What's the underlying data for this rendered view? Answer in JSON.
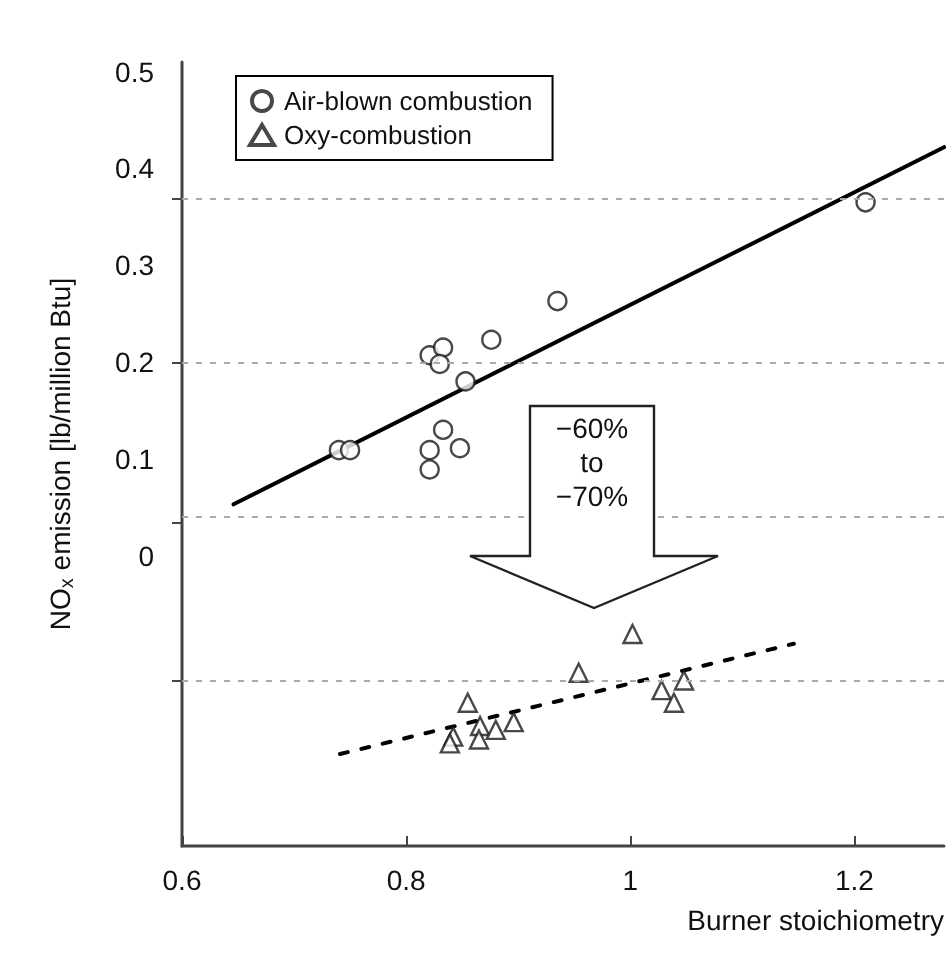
{
  "chart_data": {
    "type": "scatter",
    "xlabel": "Burner stoichiometry",
    "ylabel": "NO$_{x}$ emission [lb/million Btu]",
    "xlim": [
      0.6,
      1.28
    ],
    "xticks": [
      0.6,
      0.8,
      1,
      1.2
    ],
    "ylim": [
      -0.3,
      0.51
    ],
    "yticks": [
      {
        "value": 0.37,
        "label": null
      },
      {
        "value": 0.2,
        "label": null
      },
      {
        "value": 0.035,
        "label": null
      },
      {
        "value": -0.13,
        "label": null
      },
      0,
      0.1,
      0.2,
      0.3,
      0.4,
      0.5
    ],
    "grid": "y",
    "legend": "top left",
    "annotations": [
      "−60%\nto\n−70%"
    ],
    "series": [
      {
        "name": "Air-blown combustion",
        "marker": "circle",
        "color": "#1a1a1a",
        "x": [
          0.74,
          0.75,
          0.821,
          0.833,
          0.83,
          0.876,
          0.853,
          0.935,
          1.21,
          0.821,
          0.848,
          0.833,
          0.821
        ],
        "values": [
          0.109,
          0.109,
          0.207,
          0.215,
          0.198,
          0.223,
          0.18,
          0.263,
          0.365,
          0.109,
          0.111,
          0.13,
          0.089
        ]
      },
      {
        "name": "Oxy-combustion",
        "marker": "triangle",
        "color": "#1a1a1a",
        "x": [
          1.002,
          0.954,
          0.855,
          0.842,
          0.866,
          0.88,
          0.896,
          0.839,
          1.048,
          1.028,
          1.039,
          0.865
        ],
        "values": [
          -0.081,
          -0.121,
          -0.152,
          -0.187,
          -0.176,
          -0.18,
          -0.172,
          -0.194,
          -0.129,
          -0.139,
          -0.152,
          -0.19
        ]
      },
      {
        "type": "line",
        "marker": "none",
        "line_style": "solid",
        "color": "#000000",
        "x": [
          0.646,
          1.28
        ],
        "values": [
          0.053,
          0.422
        ]
      },
      {
        "type": "line",
        "marker": "none",
        "line_style": "dashed",
        "color": "#000000",
        "x": [
          0.741,
          1.146
        ],
        "values": [
          -0.205,
          -0.091
        ]
      }
    ]
  }
}
